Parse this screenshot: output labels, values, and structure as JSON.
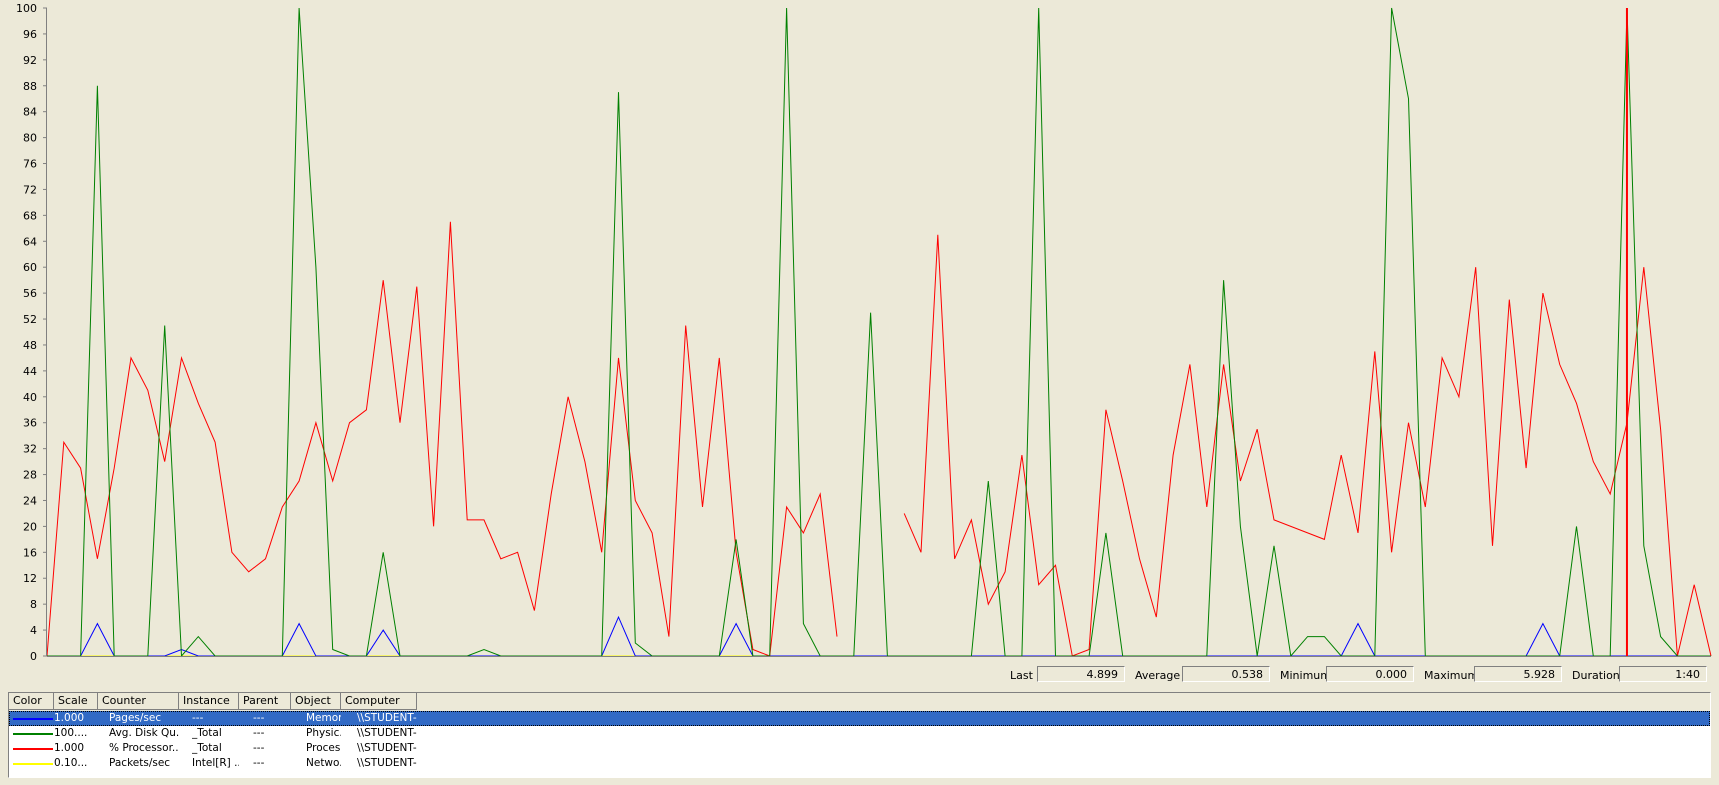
{
  "chart_data": {
    "type": "line",
    "ylim": [
      0,
      100
    ],
    "yticks": [
      0,
      4,
      8,
      12,
      16,
      20,
      24,
      28,
      32,
      36,
      40,
      44,
      48,
      52,
      56,
      60,
      64,
      68,
      72,
      76,
      80,
      84,
      88,
      92,
      96,
      100
    ],
    "n_samples": 100,
    "current_sample_index": 94,
    "grid": false,
    "series": [
      {
        "name": "Pages/sec",
        "color": "#0000ff",
        "values": [
          0,
          0,
          0,
          5,
          0,
          0,
          0,
          0,
          1,
          0,
          0,
          0,
          0,
          0,
          0,
          5,
          0,
          0,
          0,
          0,
          4,
          0,
          0,
          0,
          0,
          0,
          0,
          0,
          0,
          0,
          0,
          0,
          0,
          0,
          6,
          0,
          0,
          0,
          0,
          0,
          0,
          5,
          0,
          0,
          0,
          0,
          0,
          0,
          0,
          0,
          0,
          0,
          0,
          0,
          0,
          0,
          0,
          0,
          0,
          0,
          0,
          0,
          0,
          0,
          0,
          0,
          0,
          0,
          0,
          0,
          0,
          0,
          0,
          0,
          0,
          0,
          0,
          0,
          5,
          0,
          0,
          0,
          0,
          0,
          0,
          0,
          0,
          0,
          0,
          5,
          0,
          0,
          0,
          0,
          0,
          0,
          0,
          0,
          0,
          0
        ]
      },
      {
        "name": "Avg. Disk Qu...",
        "color": "#008000",
        "values": [
          0,
          0,
          0,
          88,
          0,
          0,
          0,
          51,
          0,
          3,
          0,
          0,
          0,
          0,
          0,
          100,
          60,
          1,
          0,
          0,
          16,
          0,
          0,
          0,
          0,
          0,
          1,
          0,
          0,
          0,
          0,
          0,
          0,
          0,
          87,
          2,
          0,
          0,
          0,
          0,
          0,
          18,
          0,
          0,
          100,
          5,
          0,
          0,
          0,
          53,
          0,
          0,
          0,
          0,
          0,
          0,
          27,
          0,
          0,
          100,
          0,
          0,
          0,
          19,
          0,
          0,
          0,
          0,
          0,
          0,
          58,
          20,
          0,
          17,
          0,
          3,
          3,
          0,
          0,
          0,
          100,
          86,
          0,
          0,
          0,
          0,
          0,
          0,
          0,
          0,
          0,
          20,
          0,
          0,
          100,
          17,
          3,
          0,
          0,
          0
        ]
      },
      {
        "name": "% Processor...",
        "color": "#ff0000",
        "values": [
          0,
          33,
          29,
          15,
          29,
          46,
          41,
          30,
          46,
          39,
          33,
          16,
          13,
          15,
          23,
          27,
          36,
          27,
          36,
          38,
          58,
          36,
          57,
          20,
          67,
          21,
          21,
          15,
          16,
          7,
          25,
          40,
          30,
          16,
          46,
          24,
          19,
          3,
          51,
          23,
          46,
          16,
          1,
          0,
          23,
          19,
          25,
          3,
          null,
          null,
          null,
          22,
          16,
          65,
          15,
          21,
          8,
          13,
          31,
          11,
          14,
          0,
          1,
          38,
          27,
          15,
          6,
          31,
          45,
          23,
          45,
          27,
          35,
          21,
          20,
          19,
          18,
          31,
          19,
          47,
          16,
          36,
          23,
          46,
          40,
          60,
          17,
          55,
          29,
          56,
          45,
          39,
          30,
          25,
          36,
          60,
          35,
          0,
          11,
          0
        ]
      },
      {
        "name": "Packets/sec",
        "color": "#ffff00",
        "values": [
          0,
          0,
          0,
          0,
          0,
          0,
          0,
          0,
          0,
          0,
          0,
          0,
          0,
          0,
          0,
          0,
          0,
          0,
          0,
          0,
          0,
          0,
          0,
          0,
          0,
          0,
          0,
          0,
          0,
          0,
          0,
          0,
          0,
          0,
          0,
          0,
          0,
          0,
          0,
          0,
          0,
          0,
          0,
          0,
          0,
          0,
          0,
          0,
          0,
          0,
          0,
          0,
          0,
          0,
          0,
          0,
          0,
          0,
          0,
          0,
          0,
          0,
          0,
          0,
          0,
          0,
          0,
          0,
          0,
          0,
          0,
          0,
          0,
          0,
          0,
          0,
          0,
          0,
          0,
          0,
          0,
          0,
          0,
          0,
          0,
          0,
          0,
          0,
          0,
          0,
          0,
          0,
          0,
          0,
          0,
          0,
          0,
          0,
          0,
          0
        ]
      }
    ]
  },
  "stats": {
    "last_label": "Last",
    "last_value": "4.899",
    "average_label": "Average",
    "average_value": "0.538",
    "minimum_label": "Minimum",
    "minimum_value": "0.000",
    "maximum_label": "Maximum",
    "maximum_value": "5.928",
    "duration_label": "Duration",
    "duration_value": "1:40"
  },
  "legend": {
    "headers": [
      "Color",
      "Scale",
      "Counter",
      "Instance",
      "Parent",
      "Object",
      "Computer"
    ],
    "rows": [
      {
        "color": "#0000ff",
        "scale": "1.000",
        "counter": "Pages/sec",
        "instance": "---",
        "parent": "---",
        "object": "Memory",
        "computer": "\\\\STUDENT-..."
      },
      {
        "color": "#008000",
        "scale": "100....",
        "counter": "Avg. Disk Qu...",
        "instance": "_Total",
        "parent": "---",
        "object": "Physic...",
        "computer": "\\\\STUDENT-..."
      },
      {
        "color": "#ff0000",
        "scale": "1.000",
        "counter": "% Processor...",
        "instance": "_Total",
        "parent": "---",
        "object": "Proces...",
        "computer": "\\\\STUDENT-..."
      },
      {
        "color": "#ffff00",
        "scale": "0.10...",
        "counter": "Packets/sec",
        "instance": "Intel[R] ...",
        "parent": "---",
        "object": "Netwo...",
        "computer": "\\\\STUDENT-..."
      }
    ]
  }
}
